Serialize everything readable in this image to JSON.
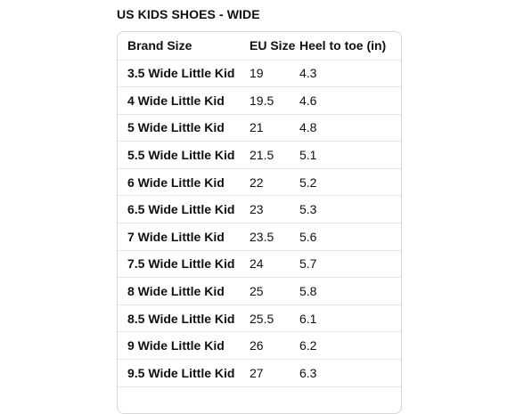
{
  "page": {
    "title": "US KIDS SHOES - WIDE"
  },
  "table": {
    "headers": [
      "Brand Size",
      "EU Size",
      "Heel to toe (in)"
    ],
    "rows": [
      [
        "3.5 Wide Little Kid",
        "19",
        "4.3"
      ],
      [
        "4 Wide Little Kid",
        "19.5",
        "4.6"
      ],
      [
        "5 Wide Little Kid",
        "21",
        "4.8"
      ],
      [
        "5.5 Wide Little Kid",
        "21.5",
        "5.1"
      ],
      [
        "6 Wide Little Kid",
        "22",
        "5.2"
      ],
      [
        "6.5 Wide Little Kid",
        "23",
        "5.3"
      ],
      [
        "7 Wide Little Kid",
        "23.5",
        "5.6"
      ],
      [
        "7.5 Wide Little Kid",
        "24",
        "5.7"
      ],
      [
        "8 Wide Little Kid",
        "25",
        "5.8"
      ],
      [
        "8.5 Wide Little Kid",
        "25.5",
        "6.1"
      ],
      [
        "9 Wide Little Kid",
        "26",
        "6.2"
      ],
      [
        "9.5 Wide Little Kid",
        "27",
        "6.3"
      ]
    ]
  },
  "colors": {
    "text": "#0f1111",
    "border": "#d5d9d9",
    "row_divider": "#e3e6e6"
  }
}
